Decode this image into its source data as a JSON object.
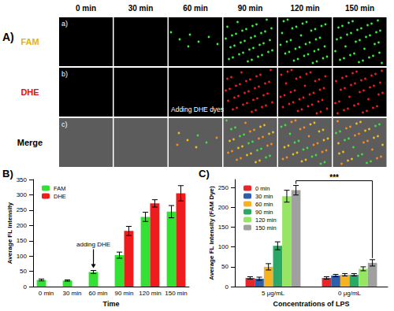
{
  "panel_a": {
    "label": "A)",
    "columns": [
      "0 min",
      "30 min",
      "60 min",
      "90 min",
      "120 min",
      "150 min"
    ],
    "rows": [
      {
        "label": "a)",
        "name": "FAM",
        "color": "#e6b400"
      },
      {
        "label": "b)",
        "name": "DHE",
        "color": "#e01010"
      },
      {
        "label": "c)",
        "name": "Merge",
        "color": "#000000"
      }
    ],
    "annotation": {
      "text": "Adding DHE dyes",
      "row": "DHE",
      "column": "60 min"
    }
  },
  "chart_data": [
    {
      "panel": "B)",
      "type": "bar",
      "categories": [
        "0 min",
        "30 min",
        "60 min",
        "90 min",
        "120 min",
        "150 min"
      ],
      "x_label": "Time",
      "y_label": "Average FL intensity",
      "series": [
        {
          "name": "FAM",
          "color": "#33e033",
          "values": [
            22,
            20,
            48,
            103,
            228,
            245
          ],
          "errors": [
            3,
            2,
            5,
            10,
            15,
            20
          ]
        },
        {
          "name": "DHE",
          "color": "#ee1c1c",
          "values": [
            null,
            null,
            null,
            182,
            272,
            305
          ],
          "errors": [
            null,
            null,
            null,
            15,
            12,
            25
          ]
        }
      ],
      "ylim": [
        0,
        350
      ],
      "yticks": [
        0,
        50,
        100,
        150,
        200,
        250,
        300,
        350
      ],
      "grid": false,
      "legend": "upper left",
      "annotations": [
        {
          "text": "adding DHE",
          "category": "60 min",
          "series": "FAM"
        }
      ]
    },
    {
      "panel": "C)",
      "type": "bar",
      "categories": [
        "5 μg/mL",
        "0 μg/mL"
      ],
      "x_label": "Concentrations of LPS",
      "y_label": "Average FL intensity (FAM Dye)",
      "series": [
        {
          "name": "0 min",
          "color": "#e8262a",
          "values": [
            22,
            22
          ],
          "errors": [
            3,
            3
          ]
        },
        {
          "name": "30 min",
          "color": "#2e5eaa",
          "values": [
            20,
            28
          ],
          "errors": [
            4,
            3
          ]
        },
        {
          "name": "60 min",
          "color": "#f5b324",
          "values": [
            50,
            30
          ],
          "errors": [
            8,
            3
          ]
        },
        {
          "name": "90 min",
          "color": "#2aa866",
          "values": [
            103,
            30
          ],
          "errors": [
            10,
            3
          ]
        },
        {
          "name": "120 min",
          "color": "#96e664",
          "values": [
            228,
            45
          ],
          "errors": [
            15,
            5
          ]
        },
        {
          "name": "150 min",
          "color": "#a0a0a0",
          "values": [
            243,
            60
          ],
          "errors": [
            12,
            8
          ]
        }
      ],
      "ylim": [
        0,
        270
      ],
      "yticks": [
        0,
        50,
        100,
        150,
        200,
        250
      ],
      "grid": false,
      "legend": "upper left",
      "significance": [
        {
          "text": "***",
          "categories": [
            "5 μg/mL",
            "0 μg/mL"
          ],
          "series": "150 min"
        }
      ]
    }
  ]
}
